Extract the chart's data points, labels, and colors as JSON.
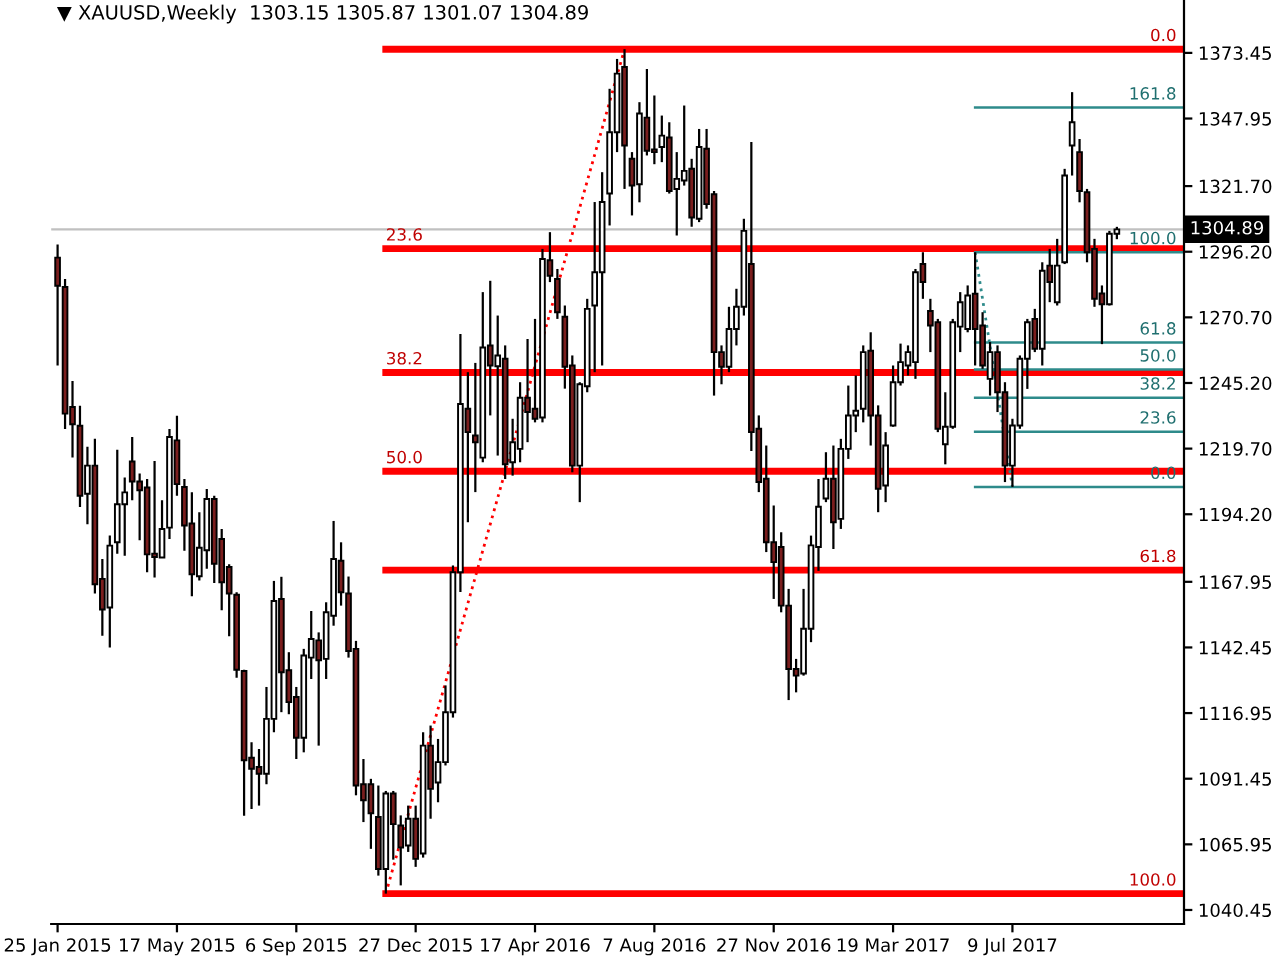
{
  "chart_data": {
    "type": "candlestick",
    "title": "▼ XAUUSD,Weekly  1303.15 1305.87 1301.07 1304.89",
    "legend": false,
    "grid": false,
    "ylim": [
      1035,
      1394
    ],
    "yticks": [
      1373.45,
      1347.95,
      {
        "value": 1321.7,
        "label": "1321.70"
      },
      {
        "value": 1296.2,
        "label": "1296.20"
      },
      {
        "value": 1270.7,
        "label": "1270.70"
      },
      {
        "value": 1245.2,
        "label": "1245.20"
      },
      {
        "value": 1219.7,
        "label": "1219.70"
      },
      {
        "value": 1194.2,
        "label": "1194.20"
      },
      1167.95,
      1142.45,
      1116.95,
      1091.45,
      1065.95,
      1040.45
    ],
    "xlim": [
      "2015-01-19",
      "2017-12-17"
    ],
    "xticks": [
      {
        "value": "2015-01-25",
        "label": "25 Jan 2015"
      },
      {
        "value": "2015-05-17",
        "label": "17 May 2015"
      },
      {
        "value": "2015-09-06",
        "label": "6 Sep 2015"
      },
      {
        "value": "2015-12-27",
        "label": "27 Dec 2015"
      },
      {
        "value": "2016-04-17",
        "label": "17 Apr 2016"
      },
      {
        "value": "2016-08-07",
        "label": "7 Aug 2016"
      },
      {
        "value": "2016-11-27",
        "label": "27 Nov 2016"
      },
      {
        "value": "2017-03-19",
        "label": "19 Mar 2017"
      },
      {
        "value": "2017-07-09",
        "label": "9 Jul 2017"
      }
    ],
    "ref_lines": [
      {
        "axis": "y",
        "value": 1374.9,
        "color": "#ff0000"
      },
      {
        "axis": "y",
        "value": 1297.4,
        "color": "#ff0000"
      },
      {
        "axis": "y",
        "value": 1249.3,
        "color": "#ff0000"
      },
      {
        "axis": "y",
        "value": 1210.9,
        "color": "#ff0000"
      },
      {
        "axis": "y",
        "value": 1172.5,
        "color": "#ff0000"
      },
      {
        "axis": "y",
        "value": 1046.8,
        "color": "#ff0000"
      },
      {
        "axis": "y",
        "value": 1352.2,
        "color": "#2e8b8b"
      },
      {
        "axis": "y",
        "value": 1296.0,
        "color": "#2e8b8b"
      },
      {
        "axis": "y",
        "value": 1260.9,
        "color": "#2e8b8b"
      },
      {
        "axis": "y",
        "value": 1250.4,
        "color": "#2e8b8b"
      },
      {
        "axis": "y",
        "value": 1239.5,
        "color": "#2e8b8b"
      },
      {
        "axis": "y",
        "value": 1226.3,
        "color": "#2e8b8b"
      },
      {
        "axis": "y",
        "value": 1204.8,
        "color": "#2e8b8b"
      },
      {
        "axis": "y",
        "value": 1304.89,
        "label": "1304.89",
        "color": "#c0c0c0"
      }
    ],
    "annotations": [
      {
        "text": "0.0",
        "x": "2017-12-10",
        "y": 1374.9
      },
      {
        "text": "23.6",
        "x": "2015-11-29",
        "y": 1297.4
      },
      {
        "text": "38.2",
        "x": "2015-11-29",
        "y": 1249.3
      },
      {
        "text": "50.0",
        "x": "2015-11-29",
        "y": 1210.9
      },
      {
        "text": "61.8",
        "x": "2017-12-10",
        "y": 1172.5
      },
      {
        "text": "100.0",
        "x": "2017-12-10",
        "y": 1046.8
      },
      {
        "text": "161.8",
        "x": "2017-12-10",
        "y": 1352.2
      },
      {
        "text": "100.0",
        "x": "2017-12-10",
        "y": 1296.0
      },
      {
        "text": "61.8",
        "x": "2017-12-10",
        "y": 1260.9
      },
      {
        "text": "50.0",
        "x": "2017-12-10",
        "y": 1250.4
      },
      {
        "text": "38.2",
        "x": "2017-12-10",
        "y": 1239.5
      },
      {
        "text": "23.6",
        "x": "2017-12-10",
        "y": 1226.3
      },
      {
        "text": "0.0",
        "x": "2017-12-10",
        "y": 1204.8
      }
    ],
    "series": [
      {
        "type": "candlestick",
        "color": "#7b1e1e",
        "colors": [
          "#7b1e1e",
          "#7b1e1e",
          "#7b1e1e",
          "#7b1e1e",
          "#ffffff",
          "#7b1e1e",
          "#7b1e1e",
          "#ffffff",
          "#ffffff",
          "#ffffff",
          "#7b1e1e",
          "#7b1e1e",
          "#7b1e1e",
          "#7b1e1e",
          "#ffffff",
          "#ffffff",
          "#7b1e1e",
          "#7b1e1e",
          "#7b1e1e",
          "#ffffff",
          "#ffffff",
          "#7b1e1e",
          "#7b1e1e",
          "#7b1e1e",
          "#7b1e1e",
          "#7b1e1e",
          "#7b1e1e",
          "#7b1e1e",
          "#ffffff",
          "#ffffff",
          "#7b1e1e",
          "#7b1e1e",
          "#7b1e1e",
          "#ffffff",
          "#ffffff",
          "#7b1e1e",
          "#ffffff",
          "#ffffff",
          "#7b1e1e",
          "#7b1e1e",
          "#7b1e1e",
          "#7b1e1e",
          "#7b1e1e",
          "#7b1e1e",
          "#ffffff",
          "#7b1e1e",
          "#7b1e1e",
          "#ffffff",
          "#7b1e1e",
          "#ffffff",
          "#7b1e1e",
          "#ffffff",
          "#ffffff",
          "#ffffff",
          "#ffffff",
          "#7b1e1e",
          "#7b1e1e",
          "#ffffff",
          "#7b1e1e",
          "#ffffff",
          "#7b1e1e",
          "#ffffff",
          "#ffffff",
          "#7b1e1e",
          "#7b1e1e",
          "#ffffff",
          "#7b1e1e",
          "#7b1e1e",
          "#7b1e1e",
          "#7b1e1e",
          "#ffffff",
          "#ffffff",
          "#ffffff",
          "#ffffff",
          "#ffffff",
          "#ffffff",
          "#7b1e1e",
          "#7b1e1e",
          "#ffffff",
          "#7b1e1e",
          "#7b1e1e",
          "#ffffff",
          "#7b1e1e",
          "#ffffff",
          "#ffffff",
          "#7b1e1e",
          "#ffffff",
          "#7b1e1e",
          "#7b1e1e",
          "#7b1e1e",
          "#ffffff",
          "#ffffff",
          "#ffffff",
          "#7b1e1e",
          "#7b1e1e",
          "#7b1e1e",
          "#7b1e1e",
          "#7b1e1e",
          "#7b1e1e",
          "#7b1e1e",
          "#ffffff",
          "#ffffff",
          "#ffffff",
          "#ffffff",
          "#7b1e1e",
          "#ffffff",
          "#ffffff",
          "#ffffff",
          "#ffffff",
          "#7b1e1e",
          "#7b1e1e",
          "#ffffff",
          "#ffffff",
          "#ffffff",
          "#ffffff",
          "#ffffff",
          "#7b1e1e",
          "#7b1e1e",
          "#7b1e1e",
          "#ffffff",
          "#ffffff",
          "#ffffff",
          "#ffffff",
          "#7b1e1e",
          "#7b1e1e",
          "#ffffff",
          "#7b1e1e",
          "#7b1e1e",
          "#ffffff",
          "#ffffff",
          "#ffffff",
          "#7b1e1e",
          "#ffffff",
          "#7b1e1e",
          "#ffffff",
          "#ffffff",
          "#ffffff",
          "#7b1e1e",
          "#7b1e1e",
          "#7b1e1e",
          "#7b1e1e",
          "#ffffff",
          "#ffffff"
        ],
        "x": [
          "2015-01-25",
          "2015-02-01",
          "2015-02-08",
          "2015-02-15",
          "2015-02-22",
          "2015-03-01",
          "2015-03-08",
          "2015-03-15",
          "2015-03-22",
          "2015-03-29",
          "2015-04-05",
          "2015-04-12",
          "2015-04-19",
          "2015-04-26",
          "2015-05-03",
          "2015-05-10",
          "2015-05-17",
          "2015-05-24",
          "2015-05-31",
          "2015-06-07",
          "2015-06-14",
          "2015-06-21",
          "2015-06-28",
          "2015-07-05",
          "2015-07-12",
          "2015-07-19",
          "2015-07-26",
          "2015-08-02",
          "2015-08-09",
          "2015-08-16",
          "2015-08-23",
          "2015-08-30",
          "2015-09-06",
          "2015-09-13",
          "2015-09-20",
          "2015-09-27",
          "2015-10-04",
          "2015-10-11",
          "2015-10-18",
          "2015-10-25",
          "2015-11-01",
          "2015-11-08",
          "2015-11-15",
          "2015-11-22",
          "2015-11-29",
          "2015-12-06",
          "2015-12-13",
          "2015-12-20",
          "2015-12-27",
          "2016-01-03",
          "2016-01-10",
          "2016-01-17",
          "2016-01-24",
          "2016-01-31",
          "2016-02-07",
          "2016-02-14",
          "2016-02-21",
          "2016-02-28",
          "2016-03-06",
          "2016-03-13",
          "2016-03-20",
          "2016-03-27",
          "2016-04-03",
          "2016-04-10",
          "2016-04-17",
          "2016-04-24",
          "2016-05-01",
          "2016-05-08",
          "2016-05-15",
          "2016-05-22",
          "2016-05-29",
          "2016-06-05",
          "2016-06-12",
          "2016-06-19",
          "2016-06-26",
          "2016-07-03",
          "2016-07-10",
          "2016-07-17",
          "2016-07-24",
          "2016-07-31",
          "2016-08-07",
          "2016-08-14",
          "2016-08-21",
          "2016-08-28",
          "2016-09-04",
          "2016-09-11",
          "2016-09-18",
          "2016-09-25",
          "2016-10-02",
          "2016-10-09",
          "2016-10-16",
          "2016-10-23",
          "2016-10-30",
          "2016-11-06",
          "2016-11-13",
          "2016-11-20",
          "2016-11-27",
          "2016-12-04",
          "2016-12-11",
          "2016-12-18",
          "2016-12-25",
          "2017-01-01",
          "2017-01-08",
          "2017-01-15",
          "2017-01-22",
          "2017-01-29",
          "2017-02-05",
          "2017-02-12",
          "2017-02-19",
          "2017-02-26",
          "2017-03-05",
          "2017-03-12",
          "2017-03-19",
          "2017-03-26",
          "2017-04-02",
          "2017-04-09",
          "2017-04-16",
          "2017-04-23",
          "2017-04-30",
          "2017-05-07",
          "2017-05-14",
          "2017-05-21",
          "2017-05-28",
          "2017-06-04",
          "2017-06-11",
          "2017-06-18",
          "2017-06-25",
          "2017-07-02",
          "2017-07-09",
          "2017-07-16",
          "2017-07-23",
          "2017-07-30",
          "2017-08-06",
          "2017-08-13",
          "2017-08-20",
          "2017-08-27",
          "2017-09-03",
          "2017-09-10",
          "2017-09-17",
          "2017-09-24",
          "2017-10-01",
          "2017-10-08",
          "2017-10-15"
        ],
        "ohlc": [
          [
            1293.9,
            1299,
            1252,
            1283
          ],
          [
            1282.5,
            1285.6,
            1227.3,
            1233.3
          ],
          [
            1235.9,
            1246,
            1216.2,
            1229.2
          ],
          [
            1228.6,
            1236.4,
            1197,
            1201.4
          ],
          [
            1202.2,
            1220.4,
            1190.3,
            1213.1
          ],
          [
            1213.1,
            1223.5,
            1163.4,
            1167
          ],
          [
            1169.1,
            1176.8,
            1147,
            1157.2
          ],
          [
            1158,
            1185.9,
            1142.4,
            1182
          ],
          [
            1183.3,
            1219.3,
            1178.9,
            1198.1
          ],
          [
            1198.1,
            1208.5,
            1178.1,
            1202.7
          ],
          [
            1214.7,
            1224.2,
            1199.6,
            1206.9
          ],
          [
            1206.9,
            1210,
            1184.1,
            1203.5
          ],
          [
            1204.6,
            1207.9,
            1171.7,
            1178.6
          ],
          [
            1178.9,
            1214.9,
            1169.6,
            1177.6
          ],
          [
            1177.4,
            1199.6,
            1177.4,
            1188.5
          ],
          [
            1189,
            1227.3,
            1184.6,
            1224.2
          ],
          [
            1222.9,
            1232.5,
            1201.4,
            1205.9
          ],
          [
            1204.8,
            1207.9,
            1180,
            1189.8
          ],
          [
            1190.6,
            1202.7,
            1162.3,
            1170.9
          ],
          [
            1170.1,
            1195,
            1168.5,
            1181.2
          ],
          [
            1180.2,
            1204,
            1173,
            1200.1
          ],
          [
            1200.1,
            1201.4,
            1167.5,
            1175
          ],
          [
            1184.6,
            1188.5,
            1156.9,
            1167.8
          ],
          [
            1173.7,
            1174.8,
            1146.8,
            1163.4
          ],
          [
            1162.9,
            1163.9,
            1130.7,
            1133.8
          ],
          [
            1133.3,
            1133.8,
            1077.1,
            1098.6
          ],
          [
            1099.6,
            1105.6,
            1079.7,
            1095.3
          ],
          [
            1096,
            1103,
            1081,
            1093.4
          ],
          [
            1093.4,
            1127.1,
            1089.3,
            1114.7
          ],
          [
            1114.7,
            1168.3,
            1109.5,
            1160.5
          ],
          [
            1161.3,
            1169.9,
            1117.3,
            1132.8
          ],
          [
            1133.6,
            1140.6,
            1116.5,
            1121.2
          ],
          [
            1123.2,
            1127.1,
            1099.1,
            1107.4
          ],
          [
            1107.4,
            1141.9,
            1101.7,
            1139.3
          ],
          [
            1138.5,
            1156.6,
            1130.2,
            1145.7
          ],
          [
            1145.2,
            1148.3,
            1104.3,
            1137.5
          ],
          [
            1138,
            1160,
            1130.2,
            1156.1
          ],
          [
            1154.8,
            1191.6,
            1150.9,
            1176.8
          ],
          [
            1176.1,
            1183.3,
            1158.7,
            1163.9
          ],
          [
            1163.4,
            1170,
            1138.5,
            1141.1
          ],
          [
            1141.9,
            1145,
            1085,
            1088.8
          ],
          [
            1089.3,
            1099.1,
            1074.6,
            1083.1
          ],
          [
            1089.3,
            1091.4,
            1064.2,
            1078
          ],
          [
            1076.6,
            1088.8,
            1053.8,
            1056.4
          ],
          [
            1056.4,
            1086.7,
            1046.8,
            1085.7
          ],
          [
            1085.7,
            1086.7,
            1060,
            1073.8
          ],
          [
            1073.3,
            1077.2,
            1050,
            1064.7
          ],
          [
            1065.5,
            1081,
            1063,
            1075.9
          ],
          [
            1075.9,
            1081,
            1057.2,
            1060.3
          ],
          [
            1062.4,
            1109.5,
            1060.8,
            1104.3
          ],
          [
            1104.3,
            1112.1,
            1075.9,
            1087.5
          ],
          [
            1090,
            1106.9,
            1082.3,
            1097.9
          ],
          [
            1097.9,
            1127.7,
            1096.6,
            1117.3
          ],
          [
            1117.3,
            1174.3,
            1115.2,
            1171.7
          ],
          [
            1171.7,
            1264.2,
            1164,
            1237
          ],
          [
            1235.2,
            1249.4,
            1191.1,
            1226.1
          ],
          [
            1224.8,
            1253,
            1202.8,
            1222.2
          ],
          [
            1216.2,
            1280.5,
            1214.4,
            1259
          ],
          [
            1259.8,
            1284.9,
            1232.6,
            1252
          ],
          [
            1251.7,
            1271.4,
            1217,
            1255.9
          ],
          [
            1254.6,
            1259.8,
            1207.9,
            1213.6
          ],
          [
            1214.4,
            1231.3,
            1209.2,
            1222.2
          ],
          [
            1219.6,
            1245.5,
            1214.4,
            1239.5
          ],
          [
            1239.5,
            1262.3,
            1222.2,
            1233.9
          ],
          [
            1235.2,
            1270.1,
            1229.9,
            1231.3
          ],
          [
            1231.8,
            1297.3,
            1229.9,
            1293.4
          ],
          [
            1292.9,
            1303.8,
            1284.4,
            1286.9
          ],
          [
            1285.6,
            1289.5,
            1270.1,
            1272.7
          ],
          [
            1270.9,
            1275.3,
            1243,
            1251.5
          ],
          [
            1252,
            1255.9,
            1210.5,
            1213.1
          ],
          [
            1213.1,
            1245.5,
            1198.9,
            1244.7
          ],
          [
            1243.9,
            1277.9,
            1241.6,
            1274
          ],
          [
            1275.3,
            1315.5,
            1249.4,
            1288.2
          ],
          [
            1288.2,
            1327.1,
            1252,
            1315.5
          ],
          [
            1318.8,
            1359.5,
            1306.4,
            1342.6
          ],
          [
            1342.6,
            1371.1,
            1334.9,
            1365.4
          ],
          [
            1368,
            1374.9,
            1320.6,
            1337.5
          ],
          [
            1332.3,
            1334.9,
            1310.3,
            1321.9
          ],
          [
            1322.4,
            1354.3,
            1315.4,
            1349.9
          ],
          [
            1348.3,
            1367.2,
            1333.6,
            1335.4
          ],
          [
            1335.9,
            1356.9,
            1330.2,
            1334.9
          ],
          [
            1336.9,
            1349.1,
            1331,
            1341.3
          ],
          [
            1340.6,
            1346.5,
            1318.8,
            1319.8
          ],
          [
            1320.6,
            1334.9,
            1302.5,
            1324.5
          ],
          [
            1323.9,
            1353,
            1321.9,
            1327.6
          ],
          [
            1328.4,
            1332.3,
            1305.9,
            1309.5
          ],
          [
            1309,
            1343.9,
            1307.7,
            1336.9
          ],
          [
            1336.2,
            1343.9,
            1312.9,
            1314.7
          ],
          [
            1318.5,
            1319.8,
            1240.3,
            1257.2
          ],
          [
            1257.2,
            1259.8,
            1244.7,
            1251.5
          ],
          [
            1251.5,
            1274.8,
            1249.4,
            1266.2
          ],
          [
            1266.2,
            1281.8,
            1259.8,
            1274.8
          ],
          [
            1274.8,
            1309,
            1271.4,
            1304.3
          ],
          [
            1291.4,
            1338.8,
            1218.8,
            1226.1
          ],
          [
            1227.4,
            1232.6,
            1202.8,
            1206.7
          ],
          [
            1208,
            1220.9,
            1179.5,
            1183.3
          ],
          [
            1183.3,
            1197.6,
            1161.3,
            1175.6
          ],
          [
            1181.5,
            1187.2,
            1156.1,
            1158.7
          ],
          [
            1158.7,
            1165.2,
            1122,
            1134.1
          ],
          [
            1134.1,
            1138,
            1125,
            1131.5
          ],
          [
            1132.3,
            1165.2,
            1131.5,
            1149.7
          ],
          [
            1149.7,
            1185.9,
            1144.5,
            1182.1
          ],
          [
            1181.5,
            1207.9,
            1172.2,
            1197.1
          ],
          [
            1200.3,
            1218.3,
            1198.9,
            1208
          ],
          [
            1208,
            1220.9,
            1180.7,
            1191.1
          ],
          [
            1192.4,
            1223.5,
            1188.5,
            1219.6
          ],
          [
            1219.6,
            1244.2,
            1215.7,
            1232.6
          ],
          [
            1232.6,
            1248.1,
            1226.1,
            1234.4
          ],
          [
            1235.2,
            1259.8,
            1229.9,
            1257.2
          ],
          [
            1257.7,
            1264.9,
            1220.9,
            1232.6
          ],
          [
            1232.6,
            1236.5,
            1195,
            1204.1
          ],
          [
            1205.4,
            1226.1,
            1198.9,
            1220.9
          ],
          [
            1228.7,
            1252,
            1228.2,
            1245.5
          ],
          [
            1245.5,
            1260.5,
            1244.2,
            1253.3
          ],
          [
            1252,
            1259.8,
            1248.1,
            1257.2
          ],
          [
            1253.3,
            1289.5,
            1246.8,
            1288.2
          ],
          [
            1291.4,
            1296,
            1277.9,
            1284.4
          ],
          [
            1273.2,
            1277.9,
            1257.2,
            1267.5
          ],
          [
            1268.8,
            1270.1,
            1226.1,
            1227.4
          ],
          [
            1221.4,
            1241.6,
            1213.6,
            1228.2
          ],
          [
            1228.2,
            1270.1,
            1227.4,
            1268.8
          ],
          [
            1267.1,
            1280.5,
            1257.2,
            1276.6
          ],
          [
            1266.2,
            1283.1,
            1264.9,
            1279.2
          ],
          [
            1279.9,
            1296,
            1252,
            1266.2
          ],
          [
            1267.5,
            1272.7,
            1250.7,
            1252
          ],
          [
            1246.8,
            1261.1,
            1240.3,
            1257.2
          ],
          [
            1257.2,
            1259.8,
            1233.9,
            1241.6
          ],
          [
            1241.6,
            1245.5,
            1206.7,
            1213.1
          ],
          [
            1213.1,
            1231.3,
            1204.8,
            1228.7
          ],
          [
            1228.7,
            1255.9,
            1227.4,
            1254.6
          ],
          [
            1254.6,
            1270.1,
            1242.9,
            1268.8
          ],
          [
            1270.1,
            1274,
            1257.2,
            1258.5
          ],
          [
            1258.5,
            1292.1,
            1252,
            1288.8
          ],
          [
            1290.8,
            1297.3,
            1276.6,
            1284.4
          ],
          [
            1276.6,
            1301.2,
            1275.3,
            1290.8
          ],
          [
            1292.1,
            1328.4,
            1291.4,
            1325.8
          ],
          [
            1337.5,
            1358.2,
            1325.8,
            1346.5
          ],
          [
            1334.9,
            1340,
            1315.4,
            1319.8
          ],
          [
            1319.3,
            1320.6,
            1292.1,
            1296
          ],
          [
            1297.3,
            1301.2,
            1274.8,
            1277.9
          ],
          [
            1280,
            1283.1,
            1260.3,
            1275.8
          ],
          [
            1275.8,
            1304.3,
            1275.3,
            1303.2
          ],
          [
            1303.15,
            1305.87,
            1301.07,
            1304.89
          ]
        ]
      },
      {
        "type": "line",
        "color": "#ff0000",
        "line_style": "dotted",
        "x": [
          "2015-11-29",
          "2016-07-10"
        ],
        "values": [
          1046.8,
          1374.9
        ]
      },
      {
        "type": "line",
        "color": "#2e8b8b",
        "line_style": "dotted",
        "x": [
          "2017-06-04",
          "2017-07-09"
        ],
        "values": [
          1296.0,
          1204.8
        ]
      }
    ]
  }
}
